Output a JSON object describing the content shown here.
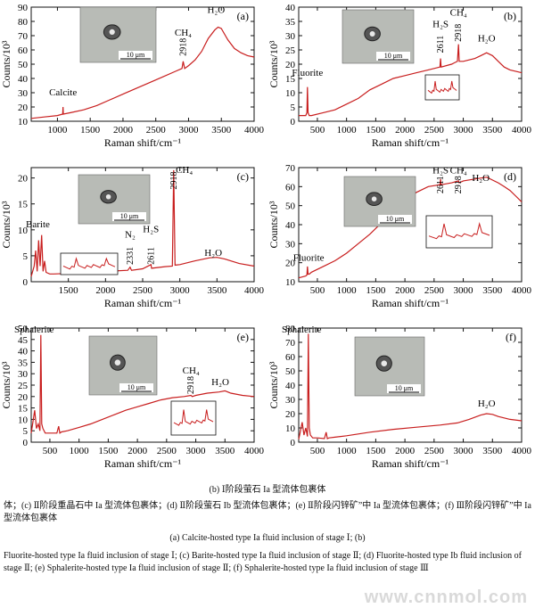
{
  "chart_data": [
    {
      "panel_id": "(a)",
      "type": "line",
      "xlabel": "Raman shift/cm⁻¹",
      "ylabel": "Counts/10³",
      "xlim": [
        600,
        4000
      ],
      "ylim": [
        10,
        90
      ],
      "xticks": [
        1000,
        1500,
        2000,
        2500,
        3000,
        3500,
        4000
      ],
      "yticks": [
        10,
        20,
        30,
        40,
        50,
        60,
        70,
        80,
        90
      ],
      "inset_scale": "10 μm",
      "annotations": [
        {
          "text": "Calcite",
          "x": 1085,
          "y": 28
        },
        {
          "text": "CH₄",
          "x": 2918,
          "y": 70
        },
        {
          "text": "2918",
          "x": 2918,
          "y": 62,
          "rotate": true
        },
        {
          "text": "H₂O",
          "x": 3420,
          "y": 86
        }
      ],
      "series": [
        {
          "x": [
            600,
            800,
            1000,
            1080,
            1085,
            1090,
            1200,
            1400,
            1600,
            1800,
            2000,
            2200,
            2400,
            2600,
            2800,
            2900,
            2918,
            2940,
            3000,
            3100,
            3200,
            3300,
            3400,
            3450,
            3500,
            3600,
            3700,
            3800,
            3900,
            4000
          ],
          "y": [
            12,
            13,
            14,
            15,
            20,
            15,
            16,
            18,
            21,
            25,
            29,
            33,
            37,
            41,
            45,
            47,
            52,
            47,
            49,
            53,
            59,
            68,
            74,
            76,
            75,
            67,
            61,
            58,
            56,
            55
          ]
        }
      ]
    },
    {
      "panel_id": "(b)",
      "type": "line",
      "xlabel": "Raman shift/cm⁻¹",
      "ylabel": "Counts/10³",
      "xlim": [
        180,
        4000
      ],
      "ylim": [
        0,
        40
      ],
      "xticks": [
        500,
        1000,
        1500,
        2000,
        2500,
        3000,
        3500,
        4000
      ],
      "yticks": [
        0,
        5,
        10,
        15,
        20,
        25,
        30,
        35,
        40
      ],
      "inset_scale": "10 μm",
      "annotations": [
        {
          "text": "Fluorite",
          "x": 330,
          "y": 16
        },
        {
          "text": "H₂S",
          "x": 2611,
          "y": 33
        },
        {
          "text": "2611",
          "x": 2611,
          "y": 27,
          "rotate": true
        },
        {
          "text": "CH₄",
          "x": 2918,
          "y": 37
        },
        {
          "text": "2918",
          "x": 2918,
          "y": 31,
          "rotate": true
        },
        {
          "text": "H₂O",
          "x": 3400,
          "y": 28
        }
      ],
      "series": [
        {
          "x": [
            180,
            250,
            300,
            320,
            330,
            340,
            360,
            400,
            600,
            800,
            1000,
            1200,
            1400,
            1600,
            1800,
            2000,
            2200,
            2400,
            2600,
            2611,
            2620,
            2800,
            2900,
            2918,
            2930,
            3000,
            3200,
            3300,
            3400,
            3450,
            3500,
            3600,
            3700,
            3800,
            4000
          ],
          "y": [
            2,
            2,
            2,
            3,
            12,
            3,
            2,
            2,
            3,
            4,
            6,
            8,
            11,
            13,
            15,
            16,
            17,
            18,
            19,
            22,
            19,
            20,
            21,
            27,
            21,
            21,
            22,
            23,
            24,
            23.5,
            23,
            21,
            19,
            18,
            17
          ]
        }
      ]
    },
    {
      "panel_id": "(c)",
      "type": "line",
      "xlabel": "Raman shift/cm⁻¹",
      "ylabel": "Counts/10³",
      "xlim": [
        1000,
        4000
      ],
      "ylim": [
        0,
        22
      ],
      "xticks": [
        1500,
        2000,
        2500,
        3000,
        3500,
        4000
      ],
      "yticks": [
        0,
        5,
        10,
        15,
        20
      ],
      "inset_scale": "10 μm",
      "annotations": [
        {
          "text": "Barite",
          "x": 1090,
          "y": 10.5
        },
        {
          "text": "N₂",
          "x": 2331,
          "y": 8.5
        },
        {
          "text": "2331",
          "x": 2331,
          "y": 5,
          "rotate": true
        },
        {
          "text": "H₂S",
          "x": 2611,
          "y": 9.5
        },
        {
          "text": "2611",
          "x": 2611,
          "y": 5,
          "rotate": true
        },
        {
          "text": "2918",
          "x": 2918,
          "y": 19.5,
          "rotate": true
        },
        {
          "text": "CH₄",
          "x": 3060,
          "y": 21
        },
        {
          "text": "H₂O",
          "x": 3450,
          "y": 5
        }
      ],
      "series": [
        {
          "x": [
            1000,
            1040,
            1060,
            1080,
            1100,
            1120,
            1140,
            1160,
            1180,
            1200,
            1250,
            1300,
            1500,
            1800,
            2000,
            2300,
            2331,
            2350,
            2500,
            2611,
            2620,
            2800,
            2900,
            2918,
            2935,
            3000,
            3200,
            3400,
            3500,
            3600,
            3800,
            4000
          ],
          "y": [
            1,
            3,
            6,
            2,
            8,
            3,
            9,
            2,
            4,
            1.8,
            1.5,
            1.5,
            1.6,
            1.8,
            2,
            2.2,
            2.8,
            2.2,
            2.5,
            3.3,
            2.6,
            2.9,
            3,
            21.5,
            3.2,
            3.3,
            4,
            4.6,
            4.7,
            4.4,
            3.5,
            3
          ]
        }
      ]
    },
    {
      "panel_id": "(d)",
      "type": "line",
      "xlabel": "Raman shift/cm⁻¹",
      "ylabel": "Counts/10³",
      "xlim": [
        180,
        4000
      ],
      "ylim": [
        10,
        70
      ],
      "xticks": [
        500,
        1000,
        1500,
        2000,
        2500,
        3000,
        3500,
        4000
      ],
      "yticks": [
        10,
        20,
        30,
        40,
        50,
        60,
        70
      ],
      "inset_scale": "10 μm",
      "annotations": [
        {
          "text": "Fluorite",
          "x": 350,
          "y": 21
        },
        {
          "text": "H₂S",
          "x": 2611,
          "y": 67
        },
        {
          "text": "2611",
          "x": 2611,
          "y": 61,
          "rotate": true
        },
        {
          "text": "CH₄",
          "x": 2918,
          "y": 67
        },
        {
          "text": "2918",
          "x": 2918,
          "y": 61,
          "rotate": true
        },
        {
          "text": "H₂O",
          "x": 3300,
          "y": 63
        }
      ],
      "series": [
        {
          "x": [
            180,
            300,
            320,
            330,
            340,
            360,
            400,
            600,
            800,
            1000,
            1200,
            1400,
            1600,
            1800,
            2000,
            2200,
            2400,
            2600,
            2611,
            2620,
            2800,
            2918,
            2930,
            3000,
            3200,
            3400,
            3600,
            3700,
            3800,
            3900,
            4000
          ],
          "y": [
            12,
            13,
            13.5,
            18,
            14,
            14,
            15,
            18,
            21,
            25,
            30,
            35,
            41,
            47,
            53,
            57,
            60,
            61,
            64,
            61,
            62,
            63,
            62,
            63,
            64,
            65,
            62,
            60,
            58,
            55,
            52
          ]
        }
      ]
    },
    {
      "panel_id": "(e)",
      "type": "line",
      "xlabel": "Raman shift/cm⁻¹",
      "ylabel": "Counts/10³",
      "xlim": [
        180,
        4000
      ],
      "ylim": [
        0,
        50
      ],
      "xticks": [
        500,
        1000,
        1500,
        2000,
        2500,
        3000,
        3500,
        4000
      ],
      "yticks": [
        0,
        5,
        10,
        15,
        20,
        25,
        30,
        35,
        40,
        45,
        50
      ],
      "inset_scale": "10 μm",
      "annotations": [
        {
          "text": "Sphalerite",
          "x": 230,
          "y": 48
        },
        {
          "text": "CH₄",
          "x": 2918,
          "y": 30
        },
        {
          "text": "2918",
          "x": 2918,
          "y": 25,
          "rotate": true
        },
        {
          "text": "H₂O",
          "x": 3420,
          "y": 25
        }
      ],
      "series": [
        {
          "x": [
            180,
            210,
            240,
            270,
            300,
            330,
            345,
            360,
            380,
            420,
            500,
            620,
            650,
            670,
            700,
            800,
            1000,
            1200,
            1400,
            1600,
            1800,
            2000,
            2200,
            2400,
            2600,
            2800,
            2918,
            2940,
            3000,
            3200,
            3400,
            3500,
            3600,
            3800,
            4000
          ],
          "y": [
            4,
            9,
            14,
            6,
            8,
            5,
            47,
            8,
            6,
            4,
            4,
            4,
            7,
            4,
            4.5,
            5,
            6.5,
            8,
            10,
            12,
            14,
            15.5,
            17,
            18.5,
            19.5,
            20,
            20.5,
            20,
            20.5,
            21.5,
            22,
            22.5,
            21.5,
            20.5,
            20
          ]
        }
      ]
    },
    {
      "panel_id": "(f)",
      "type": "line",
      "xlabel": "Raman shift/cm⁻¹",
      "ylabel": "Counts/10³",
      "xlim": [
        180,
        4000
      ],
      "ylim": [
        0,
        80
      ],
      "xticks": [
        500,
        1000,
        1500,
        2000,
        2500,
        3000,
        3500,
        4000
      ],
      "yticks": [
        0,
        10,
        20,
        30,
        40,
        50,
        60,
        70,
        80
      ],
      "inset_scale": "10 μm",
      "annotations": [
        {
          "text": "Sphalerite",
          "x": 230,
          "y": 77
        },
        {
          "text": "H₂O",
          "x": 3400,
          "y": 25
        }
      ],
      "series": [
        {
          "x": [
            180,
            210,
            240,
            270,
            300,
            330,
            345,
            360,
            380,
            420,
            500,
            620,
            650,
            670,
            700,
            800,
            1000,
            1400,
            1800,
            2200,
            2600,
            2900,
            3100,
            3300,
            3400,
            3500,
            3600,
            3800,
            4000
          ],
          "y": [
            2,
            8,
            14,
            5,
            10,
            4,
            76,
            10,
            5,
            3,
            3,
            2.5,
            7,
            2.5,
            3,
            3.5,
            4.5,
            7,
            9,
            10.5,
            12,
            13.5,
            16,
            19,
            20,
            19.5,
            18,
            16,
            15
          ]
        }
      ]
    }
  ],
  "captions": {
    "cn_title": "(b)  Ⅰ阶段萤石 Ia 型流体包裹体",
    "cn_body": "体；(c)  Ⅱ阶段重晶石中 Ia 型流体包裹体；(d)  Ⅱ阶段萤石 Ib 型流体包裹体；(e)  Ⅱ阶段闪锌矿”中 Ia 型流体包裹体；(f)  Ⅲ阶段闪锌矿”中 Ia 型流体包裹体",
    "en_title": "(a) Calcite-hosted type Ia fluid inclusion of stage  Ⅰ; (b)",
    "en_body": "Fluorite-hosted type Ia fluid inclusion of stage  Ⅰ; (c) Barite-hosted type Ia fluid inclusion of stage  Ⅱ; (d) Fluorite-hosted type Ib fluid inclusion of stage  Ⅱ; (e) Sphalerite-hosted type Ia fluid inclusion of stage  Ⅱ; (f) Sphalerite-hosted type Ia fluid inclusion of stage  Ⅲ",
    "watermark": "www.cnnmol.com"
  },
  "colors": {
    "line": "#c81e1e",
    "axis": "#111111",
    "inset_bg": "#f4f4f4",
    "photo_bg": "#b8bbb6"
  }
}
